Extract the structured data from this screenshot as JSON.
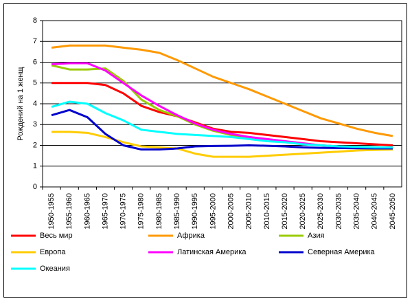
{
  "chart_data": {
    "type": "line",
    "y_label": "Рождений на 1 женщ",
    "categories": [
      "1950-1955",
      "1955-1960",
      "1960-1965",
      "1965-1970",
      "1970-1975",
      "1975-1980",
      "1980-1985",
      "1985-1990",
      "1990-1995",
      "1995-2000",
      "2000-2005",
      "2005-2010",
      "2010-2015",
      "2015-2020",
      "2020-2025",
      "2025-2030",
      "2030-2035",
      "2035-2040",
      "2040-2045",
      "2045-2050"
    ],
    "ylim": [
      0,
      8
    ],
    "yticks": [
      0,
      1,
      2,
      3,
      4,
      5,
      6,
      7,
      8
    ],
    "grid": true,
    "legend": "bottom",
    "series": [
      {
        "name": "Весь мир",
        "color": "#ff0000",
        "values": [
          5.0,
          5.0,
          5.0,
          4.9,
          4.5,
          3.9,
          3.6,
          3.4,
          3.1,
          2.8,
          2.65,
          2.6,
          2.5,
          2.4,
          2.3,
          2.2,
          2.15,
          2.1,
          2.05,
          2.0
        ]
      },
      {
        "name": "Африка",
        "color": "#ff9900",
        "values": [
          6.7,
          6.8,
          6.8,
          6.8,
          6.7,
          6.6,
          6.45,
          6.1,
          5.7,
          5.3,
          5.0,
          4.7,
          4.35,
          4.0,
          3.65,
          3.3,
          3.05,
          2.8,
          2.6,
          2.45
        ]
      },
      {
        "name": "Азия",
        "color": "#99cc00",
        "values": [
          5.85,
          5.65,
          5.65,
          5.7,
          5.1,
          4.2,
          3.7,
          3.4,
          3.0,
          2.7,
          2.5,
          2.4,
          2.3,
          2.2,
          2.1,
          2.0,
          1.95,
          1.9,
          1.88,
          1.87
        ]
      },
      {
        "name": "Европа",
        "color": "#ffcc00",
        "values": [
          2.65,
          2.65,
          2.6,
          2.4,
          2.15,
          1.95,
          1.9,
          1.85,
          1.6,
          1.45,
          1.45,
          1.45,
          1.5,
          1.55,
          1.6,
          1.65,
          1.7,
          1.75,
          1.78,
          1.8
        ]
      },
      {
        "name": "Латинская Америка",
        "color": "#ff00ff",
        "values": [
          5.9,
          5.95,
          5.95,
          5.6,
          5.0,
          4.4,
          3.9,
          3.45,
          3.05,
          2.75,
          2.55,
          2.4,
          2.3,
          2.2,
          2.1,
          2.0,
          1.95,
          1.9,
          1.88,
          1.85
        ]
      },
      {
        "name": "Северная Америка",
        "color": "#0000cc",
        "values": [
          3.45,
          3.7,
          3.35,
          2.55,
          2.0,
          1.8,
          1.8,
          1.85,
          1.95,
          1.97,
          1.98,
          2.0,
          1.98,
          1.95,
          1.9,
          1.88,
          1.87,
          1.86,
          1.85,
          1.85
        ]
      },
      {
        "name": "Океания",
        "color": "#00ffff",
        "values": [
          3.85,
          4.1,
          4.0,
          3.55,
          3.2,
          2.75,
          2.65,
          2.55,
          2.5,
          2.45,
          2.4,
          2.3,
          2.2,
          2.15,
          2.05,
          2.0,
          1.95,
          1.93,
          1.9,
          1.9
        ]
      }
    ]
  }
}
